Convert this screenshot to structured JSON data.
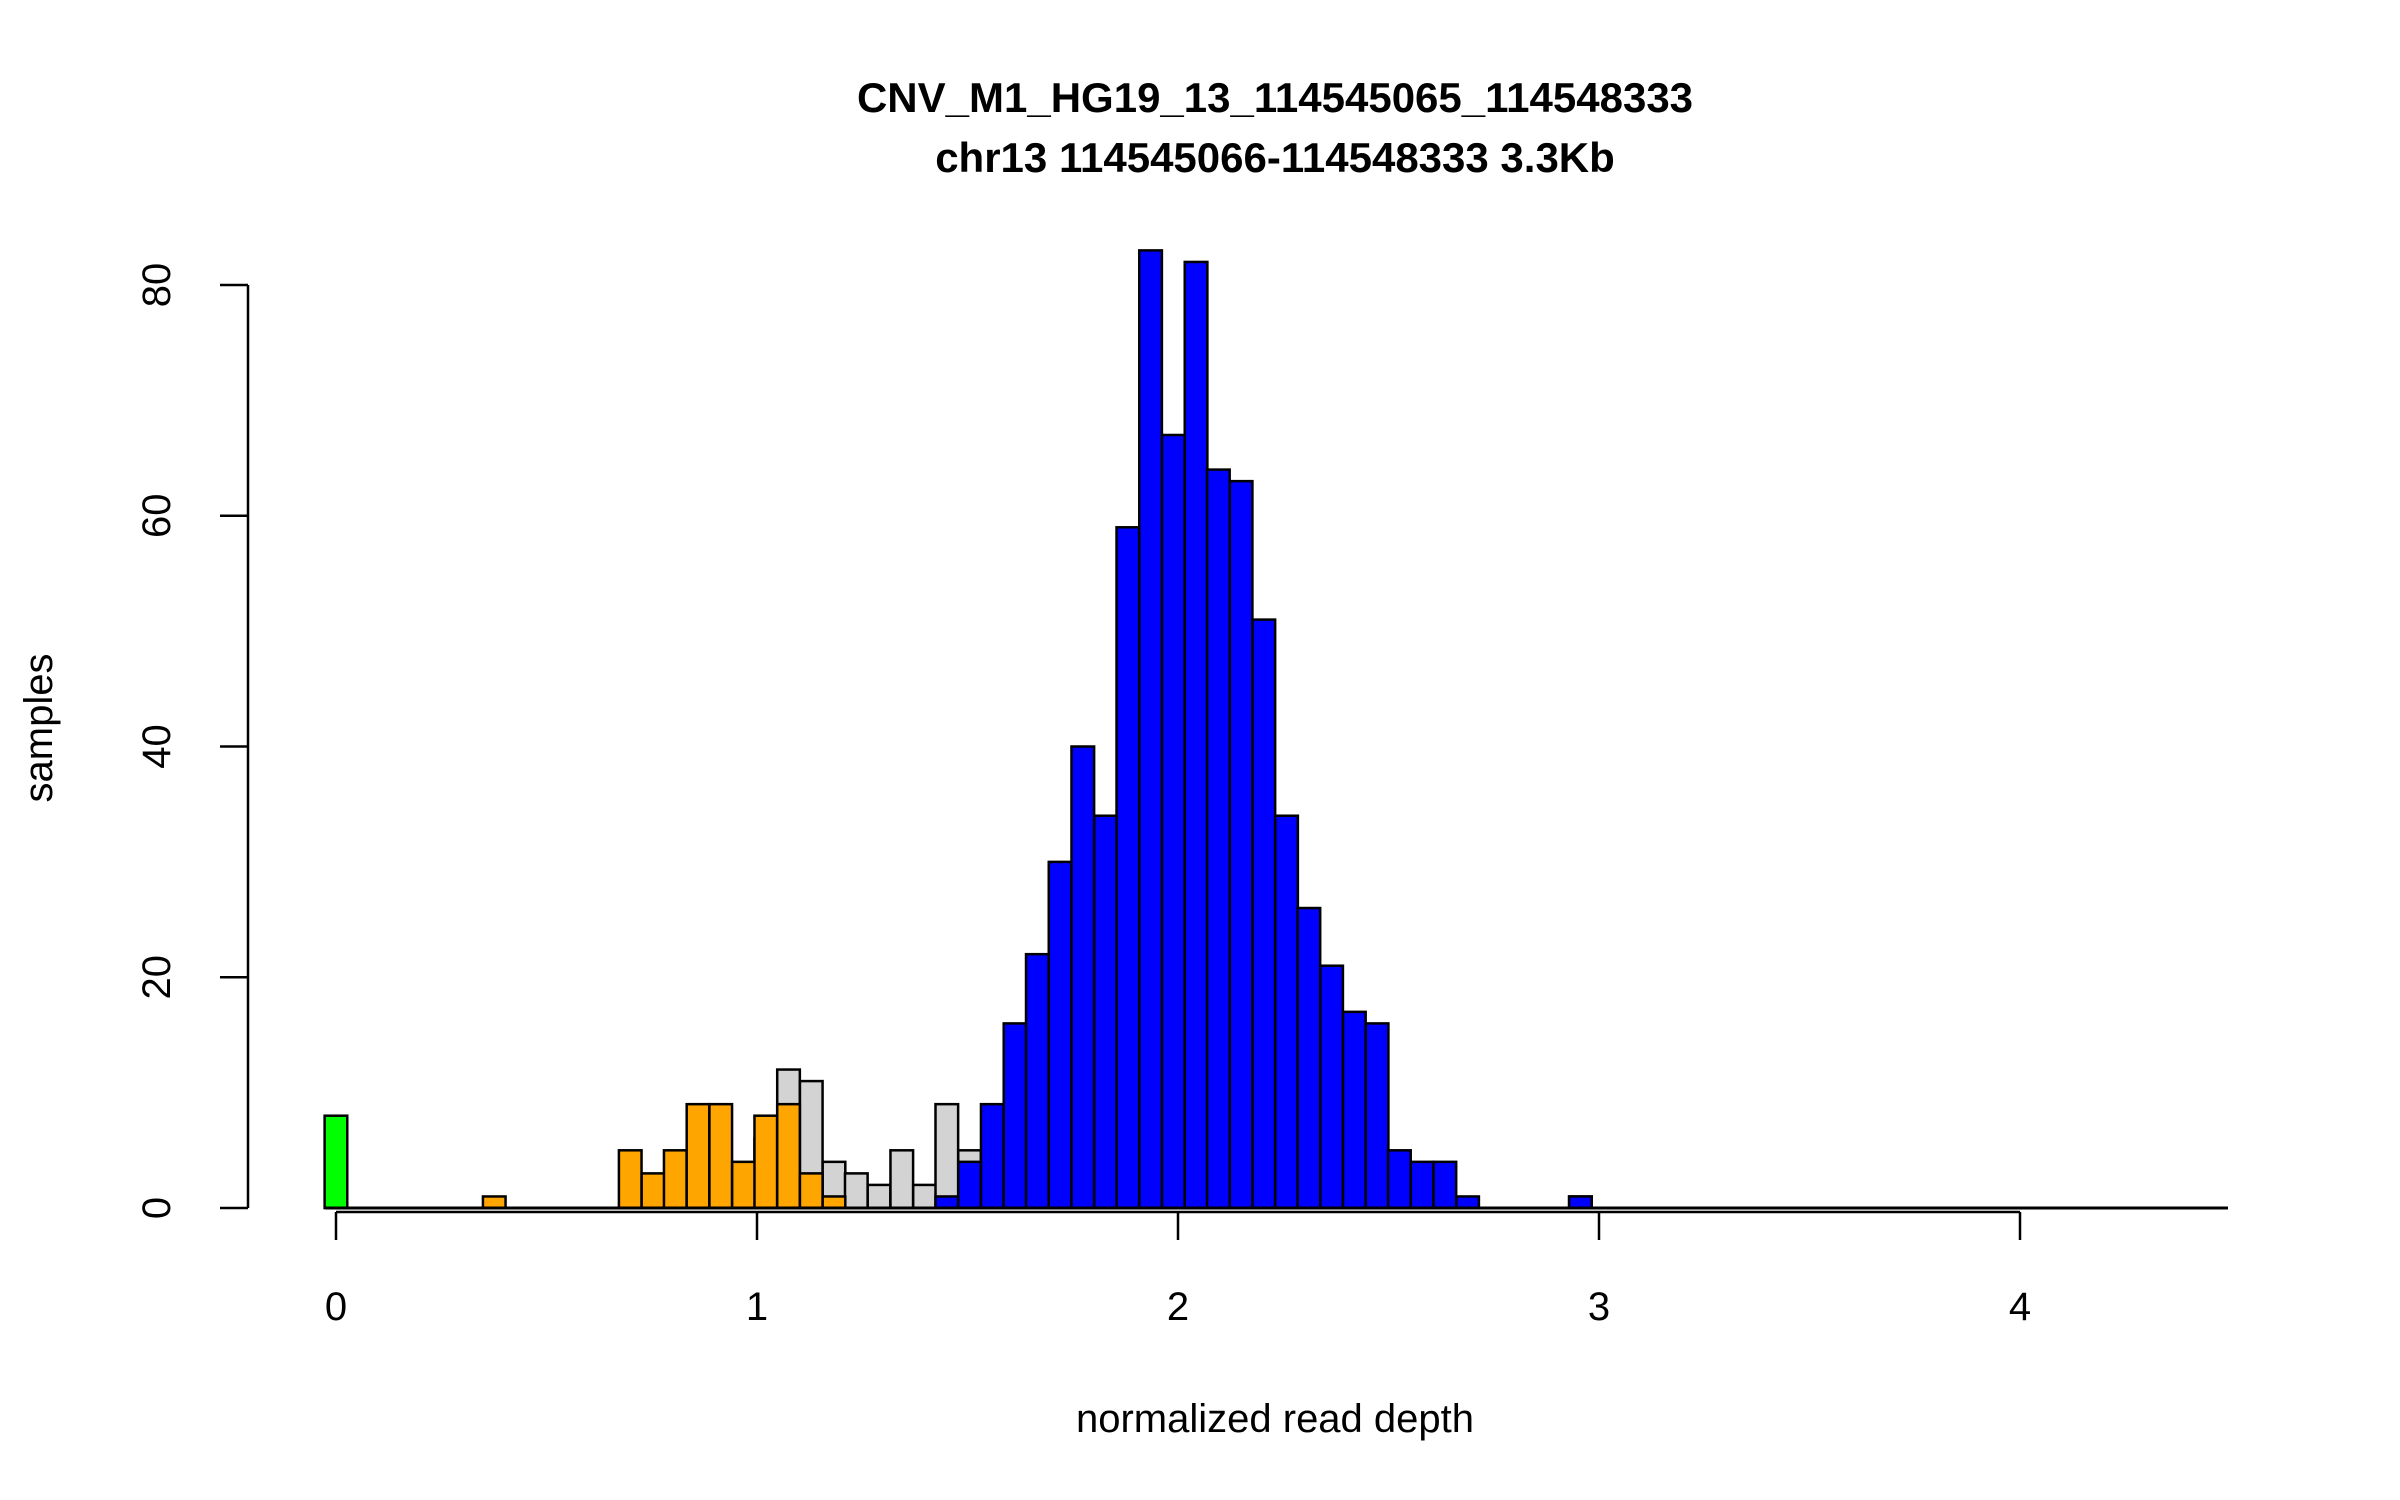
{
  "chart_data": {
    "type": "bar",
    "title": "CNV_M1_HG19_13_114545065_114548333",
    "subtitle": "chr13 114545066-114548333 3.3Kb",
    "xlabel": "normalized read depth",
    "ylabel": "samples",
    "xlim": [
      -0.25,
      4.5
    ],
    "ylim": [
      0,
      83
    ],
    "x_ticks": [
      "0",
      "1",
      "2",
      "3",
      "4"
    ],
    "x_tick_values": [
      0,
      1,
      2,
      3,
      4
    ],
    "y_ticks": [
      "0",
      "20",
      "40",
      "60",
      "80"
    ],
    "y_tick_values": [
      0,
      20,
      40,
      60,
      80
    ],
    "bin_width": 0.05375,
    "bin_starts": [
      -0.027,
      0.0,
      0.349,
      0.672,
      0.726,
      0.779,
      0.833,
      0.887,
      0.941,
      0.994,
      1.048,
      1.102,
      1.156,
      1.209,
      1.263,
      1.317,
      1.371,
      1.424,
      1.478,
      1.532,
      1.586,
      1.639,
      1.693,
      1.747,
      1.801,
      1.854,
      1.908,
      1.962,
      2.016,
      2.069,
      2.123,
      2.177,
      2.231,
      2.284,
      2.338,
      2.392,
      2.446,
      2.499,
      2.553,
      2.607,
      2.661,
      2.929
    ],
    "series": [
      {
        "color": "#d3d3d3",
        "values": [
          0,
          0,
          0,
          0,
          0,
          0,
          0,
          0,
          0,
          6,
          12,
          11,
          4,
          3,
          2,
          5,
          2,
          9,
          5,
          0,
          0,
          0,
          0,
          0,
          0,
          0,
          0,
          0,
          0,
          0,
          0,
          0,
          0,
          0,
          0,
          0,
          0,
          0,
          0,
          0,
          0,
          0
        ]
      },
      {
        "color": "#ffa500",
        "values": [
          0,
          0,
          1,
          5,
          3,
          5,
          9,
          9,
          4,
          8,
          9,
          3,
          1,
          0,
          0,
          0,
          0,
          0,
          0,
          0,
          0,
          0,
          0,
          0,
          0,
          0,
          0,
          0,
          0,
          0,
          0,
          0,
          0,
          0,
          0,
          0,
          0,
          0,
          0,
          0,
          0,
          0
        ]
      },
      {
        "color": "#0000ff",
        "values": [
          0,
          0,
          0,
          0,
          0,
          0,
          0,
          0,
          0,
          0,
          0,
          0,
          0,
          0,
          0,
          0,
          0,
          1,
          4,
          9,
          16,
          22,
          30,
          40,
          34,
          59,
          83,
          67,
          82,
          64,
          63,
          51,
          34,
          26,
          21,
          17,
          16,
          5,
          4,
          4,
          1,
          1
        ]
      },
      {
        "color": "#00ff00",
        "values": [
          8,
          0,
          0,
          0,
          0,
          0,
          0,
          0,
          0,
          0,
          0,
          0,
          0,
          0,
          0,
          0,
          0,
          0,
          0,
          0,
          0,
          0,
          0,
          0,
          0,
          0,
          0,
          0,
          0,
          0,
          0,
          0,
          0,
          0,
          0,
          0,
          0,
          0,
          0,
          0,
          0,
          0
        ]
      }
    ],
    "extra_bars": [
      {
        "x": 2.929,
        "value": 1,
        "color": "#0000ff"
      }
    ]
  }
}
